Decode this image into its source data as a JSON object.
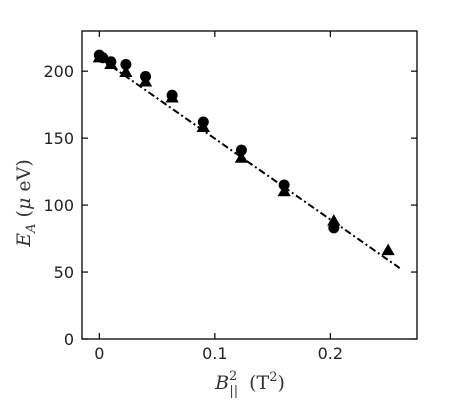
{
  "chart_data": {
    "type": "scatter",
    "title": "",
    "xlabel": "B_||^2 (T^2)",
    "ylabel": "E_A (μ eV)",
    "xlim": [
      -0.015,
      0.275
    ],
    "ylim": [
      0,
      230
    ],
    "xticks": [
      0,
      0.1,
      0.2
    ],
    "xtick_labels": [
      "0",
      "0.1",
      "0.2"
    ],
    "yticks": [
      0,
      50,
      100,
      150,
      200
    ],
    "ytick_labels": [
      "0",
      "50",
      "100",
      "150",
      "200"
    ],
    "grid": false,
    "legend": "none",
    "colors": {
      "markers": "#000000",
      "fit_line": "#000000",
      "axes": "#000000"
    },
    "series": [
      {
        "marker": "circle",
        "x": [
          0.0,
          0.003,
          0.01,
          0.023,
          0.04,
          0.063,
          0.09,
          0.123,
          0.16,
          0.203
        ],
        "y": [
          212,
          210,
          207,
          205,
          196,
          182,
          162,
          141,
          115,
          83
        ]
      },
      {
        "marker": "triangle",
        "x": [
          0.0,
          0.01,
          0.023,
          0.04,
          0.063,
          0.09,
          0.123,
          0.16,
          0.203,
          0.25
        ],
        "y": [
          210,
          205,
          199,
          192,
          180,
          158,
          135,
          110,
          88,
          66
        ]
      }
    ],
    "fit_line": {
      "style": "dash-dot",
      "x": [
        0.0,
        0.26
      ],
      "y": [
        210,
        53
      ]
    }
  }
}
